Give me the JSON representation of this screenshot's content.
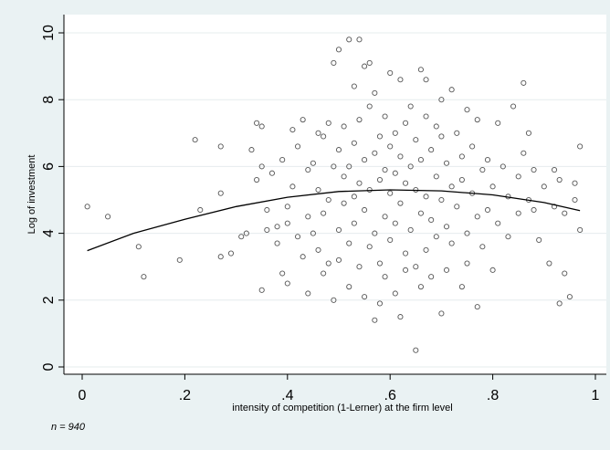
{
  "chart_data": {
    "type": "scatter",
    "title": "",
    "xlabel": "intensity of competition (1-Lerner) at the firm level",
    "ylabel": "Log of investment",
    "note": "n = 940",
    "xlim": [
      0,
      1
    ],
    "ylim": [
      0,
      10
    ],
    "x_ticks": [
      0,
      0.2,
      0.4,
      0.6,
      0.8,
      1
    ],
    "x_tick_labels": [
      "0",
      ".2",
      ".4",
      ".6",
      ".8",
      "1"
    ],
    "y_ticks": [
      0,
      2,
      4,
      6,
      8,
      10
    ],
    "y_tick_labels": [
      "0",
      "2",
      "4",
      "6",
      "8",
      "10"
    ],
    "grid": "horizontal",
    "legend": "none",
    "marker": "hollow-circle",
    "colors": {
      "background": "#eaf2f3",
      "plot_area": "#ffffff",
      "marker": "#555555",
      "fit_line": "#000000"
    },
    "series": [
      {
        "type": "scatter",
        "points": [
          [
            0.01,
            4.8
          ],
          [
            0.05,
            4.5
          ],
          [
            0.11,
            3.6
          ],
          [
            0.12,
            2.7
          ],
          [
            0.19,
            3.2
          ],
          [
            0.22,
            6.8
          ],
          [
            0.23,
            4.7
          ],
          [
            0.27,
            6.6
          ],
          [
            0.27,
            5.2
          ],
          [
            0.27,
            3.3
          ],
          [
            0.29,
            3.4
          ],
          [
            0.31,
            3.9
          ],
          [
            0.32,
            4.0
          ],
          [
            0.33,
            6.5
          ],
          [
            0.34,
            7.3
          ],
          [
            0.34,
            5.6
          ],
          [
            0.35,
            7.2
          ],
          [
            0.35,
            6.0
          ],
          [
            0.35,
            2.3
          ],
          [
            0.36,
            4.1
          ],
          [
            0.36,
            4.7
          ],
          [
            0.37,
            5.8
          ],
          [
            0.38,
            4.2
          ],
          [
            0.38,
            3.7
          ],
          [
            0.39,
            6.2
          ],
          [
            0.39,
            2.8
          ],
          [
            0.4,
            4.3
          ],
          [
            0.4,
            4.8
          ],
          [
            0.4,
            2.5
          ],
          [
            0.41,
            7.1
          ],
          [
            0.41,
            5.4
          ],
          [
            0.42,
            3.9
          ],
          [
            0.42,
            6.6
          ],
          [
            0.43,
            7.4
          ],
          [
            0.43,
            3.3
          ],
          [
            0.44,
            4.5
          ],
          [
            0.44,
            5.9
          ],
          [
            0.44,
            2.2
          ],
          [
            0.45,
            6.1
          ],
          [
            0.45,
            4.0
          ],
          [
            0.46,
            7.0
          ],
          [
            0.46,
            3.5
          ],
          [
            0.46,
            5.3
          ],
          [
            0.47,
            6.9
          ],
          [
            0.47,
            2.8
          ],
          [
            0.47,
            4.6
          ],
          [
            0.48,
            7.3
          ],
          [
            0.48,
            3.1
          ],
          [
            0.48,
            5.0
          ],
          [
            0.49,
            6.0
          ],
          [
            0.49,
            9.1
          ],
          [
            0.49,
            2.0
          ],
          [
            0.5,
            9.5
          ],
          [
            0.5,
            6.5
          ],
          [
            0.5,
            4.1
          ],
          [
            0.5,
            3.2
          ],
          [
            0.51,
            5.7
          ],
          [
            0.51,
            7.2
          ],
          [
            0.51,
            4.9
          ],
          [
            0.52,
            9.8
          ],
          [
            0.52,
            6.0
          ],
          [
            0.52,
            3.7
          ],
          [
            0.52,
            2.4
          ],
          [
            0.53,
            5.1
          ],
          [
            0.53,
            8.4
          ],
          [
            0.53,
            4.3
          ],
          [
            0.53,
            6.7
          ],
          [
            0.54,
            9.8
          ],
          [
            0.54,
            3.0
          ],
          [
            0.54,
            5.5
          ],
          [
            0.54,
            7.4
          ],
          [
            0.55,
            9.0
          ],
          [
            0.55,
            4.7
          ],
          [
            0.55,
            6.2
          ],
          [
            0.55,
            2.1
          ],
          [
            0.56,
            5.3
          ],
          [
            0.56,
            7.8
          ],
          [
            0.56,
            3.6
          ],
          [
            0.56,
            9.1
          ],
          [
            0.57,
            6.4
          ],
          [
            0.57,
            4.0
          ],
          [
            0.57,
            1.4
          ],
          [
            0.57,
            8.2
          ],
          [
            0.58,
            5.6
          ],
          [
            0.58,
            3.1
          ],
          [
            0.58,
            6.9
          ],
          [
            0.58,
            1.9
          ],
          [
            0.59,
            4.5
          ],
          [
            0.59,
            7.5
          ],
          [
            0.59,
            5.9
          ],
          [
            0.59,
            2.7
          ],
          [
            0.6,
            8.8
          ],
          [
            0.6,
            5.2
          ],
          [
            0.6,
            3.8
          ],
          [
            0.6,
            6.6
          ],
          [
            0.61,
            4.3
          ],
          [
            0.61,
            7.0
          ],
          [
            0.61,
            2.2
          ],
          [
            0.61,
            5.8
          ],
          [
            0.62,
            8.6
          ],
          [
            0.62,
            4.9
          ],
          [
            0.62,
            6.3
          ],
          [
            0.62,
            1.5
          ],
          [
            0.63,
            3.4
          ],
          [
            0.63,
            5.5
          ],
          [
            0.63,
            7.3
          ],
          [
            0.63,
            2.9
          ],
          [
            0.64,
            6.0
          ],
          [
            0.64,
            4.1
          ],
          [
            0.64,
            7.8
          ],
          [
            0.65,
            0.5
          ],
          [
            0.65,
            5.3
          ],
          [
            0.65,
            3.0
          ],
          [
            0.65,
            6.8
          ],
          [
            0.66,
            8.9
          ],
          [
            0.66,
            4.6
          ],
          [
            0.66,
            2.4
          ],
          [
            0.66,
            6.2
          ],
          [
            0.67,
            5.1
          ],
          [
            0.67,
            7.5
          ],
          [
            0.67,
            3.5
          ],
          [
            0.67,
            8.6
          ],
          [
            0.68,
            4.4
          ],
          [
            0.68,
            6.5
          ],
          [
            0.68,
            2.7
          ],
          [
            0.69,
            5.7
          ],
          [
            0.69,
            7.2
          ],
          [
            0.69,
            3.9
          ],
          [
            0.7,
            8.0
          ],
          [
            0.7,
            5.0
          ],
          [
            0.7,
            1.6
          ],
          [
            0.7,
            6.9
          ],
          [
            0.71,
            4.2
          ],
          [
            0.71,
            6.1
          ],
          [
            0.71,
            2.9
          ],
          [
            0.72,
            8.3
          ],
          [
            0.72,
            5.4
          ],
          [
            0.72,
            3.7
          ],
          [
            0.73,
            7.0
          ],
          [
            0.73,
            4.8
          ],
          [
            0.74,
            6.3
          ],
          [
            0.74,
            2.4
          ],
          [
            0.74,
            5.6
          ],
          [
            0.75,
            7.7
          ],
          [
            0.75,
            4.0
          ],
          [
            0.75,
            3.1
          ],
          [
            0.76,
            6.6
          ],
          [
            0.76,
            5.2
          ],
          [
            0.77,
            4.5
          ],
          [
            0.77,
            7.4
          ],
          [
            0.77,
            1.8
          ],
          [
            0.78,
            5.9
          ],
          [
            0.78,
            3.6
          ],
          [
            0.79,
            6.2
          ],
          [
            0.79,
            4.7
          ],
          [
            0.8,
            5.4
          ],
          [
            0.8,
            2.9
          ],
          [
            0.81,
            7.3
          ],
          [
            0.81,
            4.3
          ],
          [
            0.82,
            6.0
          ],
          [
            0.83,
            5.1
          ],
          [
            0.83,
            3.9
          ],
          [
            0.84,
            7.8
          ],
          [
            0.85,
            5.7
          ],
          [
            0.85,
            4.6
          ],
          [
            0.86,
            8.5
          ],
          [
            0.86,
            6.4
          ],
          [
            0.87,
            5.0
          ],
          [
            0.87,
            7.0
          ],
          [
            0.88,
            4.7
          ],
          [
            0.88,
            5.9
          ],
          [
            0.89,
            3.8
          ],
          [
            0.9,
            5.4
          ],
          [
            0.91,
            3.1
          ],
          [
            0.92,
            5.9
          ],
          [
            0.92,
            4.8
          ],
          [
            0.93,
            1.9
          ],
          [
            0.93,
            5.6
          ],
          [
            0.94,
            2.8
          ],
          [
            0.94,
            4.6
          ],
          [
            0.95,
            2.1
          ],
          [
            0.96,
            5.5
          ],
          [
            0.96,
            5.0
          ],
          [
            0.97,
            4.1
          ],
          [
            0.97,
            6.6
          ]
        ]
      },
      {
        "type": "line",
        "name": "",
        "x": [
          0.01,
          0.1,
          0.2,
          0.3,
          0.4,
          0.5,
          0.6,
          0.7,
          0.8,
          0.9,
          0.97
        ],
        "y": [
          3.48,
          4.0,
          4.42,
          4.8,
          5.08,
          5.25,
          5.3,
          5.27,
          5.15,
          4.92,
          4.68
        ]
      }
    ]
  }
}
